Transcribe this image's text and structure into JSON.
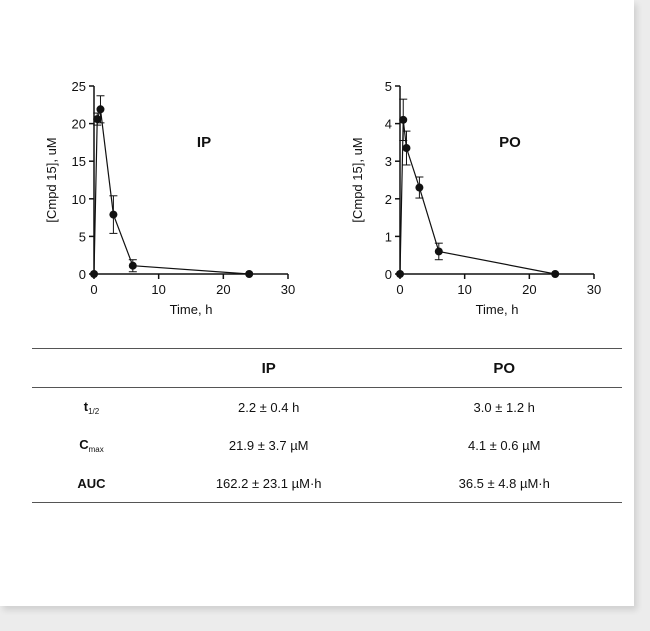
{
  "chart_data": [
    {
      "type": "line",
      "panel_label": "IP",
      "xlabel": "Time, h",
      "ylabel": "[Cmpd 15], uM",
      "xlim": [
        0,
        30
      ],
      "ylim": [
        0,
        25
      ],
      "xticks": [
        0,
        10,
        20,
        30
      ],
      "yticks": [
        0,
        5,
        10,
        15,
        20,
        25
      ],
      "series": [
        {
          "x": [
            0,
            0.5,
            1,
            3,
            6,
            24
          ],
          "y": [
            0,
            20.6,
            21.9,
            7.9,
            1.1,
            0
          ],
          "error": [
            0,
            0.8,
            1.8,
            2.5,
            0.8,
            0
          ]
        }
      ]
    },
    {
      "type": "line",
      "panel_label": "PO",
      "xlabel": "Time, h",
      "ylabel": "[Cmpd 15], uM",
      "xlim": [
        0,
        30
      ],
      "ylim": [
        0,
        5
      ],
      "xticks": [
        0,
        10,
        20,
        30
      ],
      "yticks": [
        0,
        1,
        2,
        3,
        4,
        5
      ],
      "series": [
        {
          "x": [
            0,
            0.5,
            1,
            3,
            6,
            24
          ],
          "y": [
            0,
            4.1,
            3.35,
            2.3,
            0.6,
            0
          ],
          "error": [
            0,
            0.55,
            0.45,
            0.28,
            0.22,
            0
          ]
        }
      ]
    }
  ],
  "table": {
    "headers": [
      "",
      "IP",
      "PO"
    ],
    "rows": [
      {
        "param": "t",
        "param_sub": "1/2",
        "ip": "2.2 ± 0.4 h",
        "po": "3.0 ± 1.2 h"
      },
      {
        "param": "C",
        "param_sub": "max",
        "ip": "21.9 ± 3.7 µM",
        "po": "4.1 ± 0.6 µM"
      },
      {
        "param": "AUC",
        "param_sub": "",
        "ip": "162.2 ± 23.1 µM·h",
        "po": "36.5 ± 4.8 µM·h"
      }
    ]
  }
}
